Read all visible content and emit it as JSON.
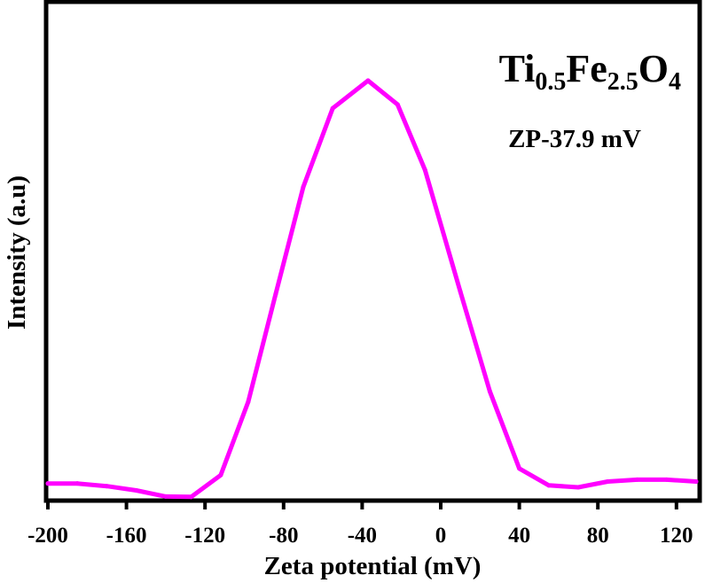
{
  "chart_data": {
    "type": "line",
    "xlabel": "Zeta potential (mV)",
    "ylabel": "Intensity (a.u)",
    "xlim": [
      -200,
      130
    ],
    "ylim": [
      0,
      1.05
    ],
    "xticks": [
      -200,
      -160,
      -120,
      -80,
      -40,
      0,
      40,
      80,
      120
    ],
    "xtick_labels": [
      "-200",
      "-160",
      "-120",
      "-80",
      "-40",
      "0",
      "40",
      "80",
      "120"
    ],
    "y_tick_labels_shown": false,
    "grid": false,
    "series": [
      {
        "color": "#ff00ff",
        "x": [
          -200,
          -185,
          -170,
          -155,
          -140,
          -127,
          -112,
          -98,
          -84,
          -70,
          -55,
          -37,
          -22,
          -8,
          10,
          25,
          40,
          55,
          70,
          85,
          100,
          115,
          130
        ],
        "y": [
          0.04,
          0.04,
          0.033,
          0.022,
          0.006,
          0.005,
          0.062,
          0.253,
          0.534,
          0.813,
          1.018,
          1.09,
          1.028,
          0.857,
          0.54,
          0.28,
          0.079,
          0.035,
          0.03,
          0.045,
          0.05,
          0.05,
          0.045
        ]
      }
    ],
    "annotations": {
      "sample": {
        "base1": "Ti",
        "sub1": "0.5",
        "base2": "Fe",
        "sub2": "2.5",
        "base3": "O",
        "sub3": "4"
      },
      "zeta_value": "ZP-37.9 mV"
    }
  }
}
